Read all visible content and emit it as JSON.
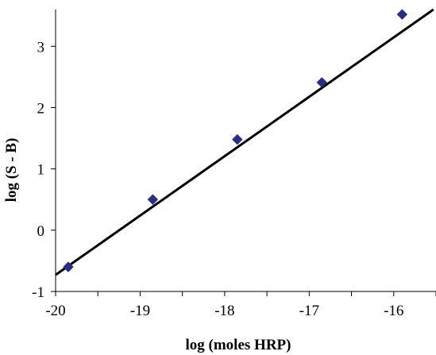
{
  "chart_data": {
    "type": "scatter",
    "title": "",
    "xlabel": "log (moles HRP)",
    "ylabel": "log (S - B)",
    "xlim": [
      -20,
      -15.5
    ],
    "ylim": [
      -1,
      3.6
    ],
    "xticks": [
      -20,
      -19,
      -18,
      -17,
      -16
    ],
    "yticks": [
      -1,
      0,
      1,
      2,
      3
    ],
    "xtick_labels": [
      "-20",
      "-19",
      "-18",
      "-17",
      "-16"
    ],
    "ytick_labels": [
      "-1",
      "0",
      "1",
      "2",
      "3"
    ],
    "grid": false,
    "legend": "none",
    "series": [
      {
        "marker": "diamond",
        "color": "#2a2f7a",
        "points": [
          {
            "x": -19.85,
            "y": -0.6
          },
          {
            "x": -18.85,
            "y": 0.5
          },
          {
            "x": -17.85,
            "y": 1.48
          },
          {
            "x": -16.85,
            "y": 2.41
          },
          {
            "x": -15.9,
            "y": 3.52
          }
        ]
      }
    ],
    "fit_line": {
      "color": "#000000",
      "points": [
        {
          "x": -20.0,
          "y": -0.73
        },
        {
          "x": -15.53,
          "y": 3.6
        }
      ]
    }
  }
}
